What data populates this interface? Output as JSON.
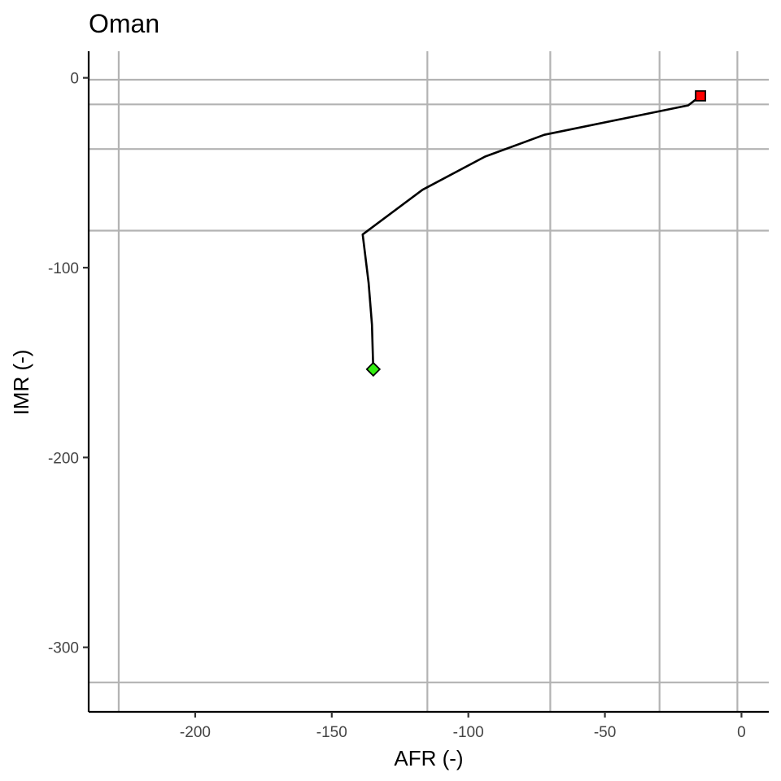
{
  "chart_data": {
    "type": "line",
    "title": "Oman",
    "xlabel": "AFR (-)",
    "ylabel": "IMR (-)",
    "xlim": [
      -239,
      10
    ],
    "ylim": [
      -334,
      14
    ],
    "x_ticks": [
      -200,
      -150,
      -100,
      -50,
      0
    ],
    "y_ticks": [
      0,
      -100,
      -200,
      -300
    ],
    "grid": false,
    "vertical_reference_lines": [
      -228,
      -115,
      -70,
      -30,
      -1.5
    ],
    "horizontal_reference_lines": [
      -1,
      -14,
      -37.5,
      -80.5,
      -318.5
    ],
    "series": [
      {
        "x": [
          -134.8,
          -135.3,
          -136.5,
          -138.7,
          -116.8,
          -93.9,
          -72.2,
          -19.5,
          -15
        ],
        "y": [
          -153.5,
          -130,
          -108,
          -82.5,
          -59,
          -41.5,
          -30,
          -14.5,
          -9.5
        ]
      }
    ],
    "markers": [
      {
        "shape": "diamond",
        "color": "#33ee11",
        "x": -134.8,
        "y": -153.5
      },
      {
        "shape": "square",
        "color": "#ff0000",
        "x": -15,
        "y": -9.5
      }
    ]
  }
}
